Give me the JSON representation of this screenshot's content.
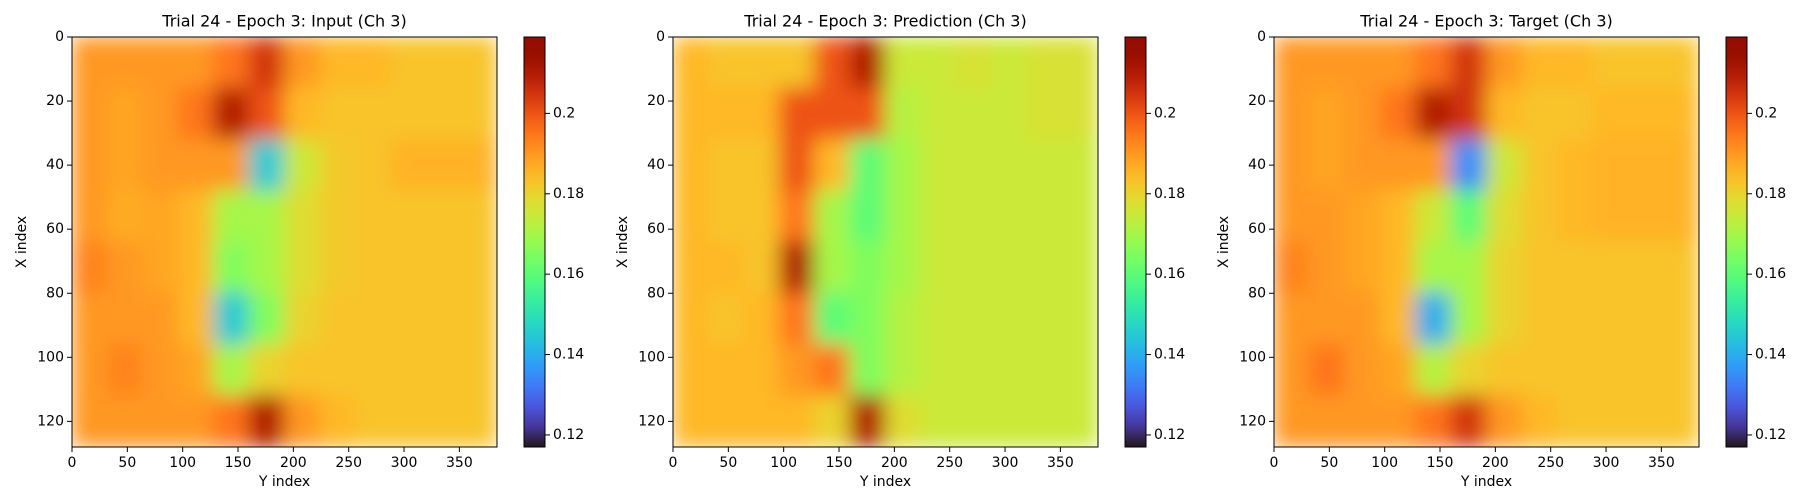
{
  "chart_data": [
    {
      "type": "heatmap",
      "title": "Trial 24 - Epoch 3: Input (Ch 3)",
      "xlabel": "Y index",
      "ylabel": "X index",
      "xlim": [
        0,
        384
      ],
      "ylim": [
        0,
        128
      ],
      "invert_y": true,
      "xticks": [
        0,
        50,
        100,
        150,
        200,
        250,
        300,
        350
      ],
      "yticks": [
        0,
        20,
        40,
        60,
        80,
        100,
        120
      ],
      "xbins": [
        0,
        32,
        64,
        96,
        128,
        160,
        192,
        224,
        256,
        288,
        320,
        352,
        384
      ],
      "ybins": [
        0,
        16,
        32,
        48,
        64,
        80,
        96,
        112,
        128
      ],
      "colormap": "turbo",
      "clim": [
        0.117,
        0.219
      ],
      "cticks": [
        0.12,
        0.14,
        0.16,
        0.18,
        0.2
      ],
      "z": [
        [
          0.19,
          0.19,
          0.19,
          0.19,
          0.195,
          0.205,
          0.19,
          0.185,
          0.185,
          0.183,
          0.183,
          0.183
        ],
        [
          0.19,
          0.188,
          0.19,
          0.195,
          0.21,
          0.2,
          0.185,
          0.183,
          0.183,
          0.183,
          0.183,
          0.183
        ],
        [
          0.19,
          0.188,
          0.19,
          0.19,
          0.19,
          0.145,
          0.175,
          0.182,
          0.183,
          0.186,
          0.186,
          0.186
        ],
        [
          0.19,
          0.187,
          0.188,
          0.185,
          0.17,
          0.17,
          0.178,
          0.182,
          0.183,
          0.183,
          0.183,
          0.183
        ],
        [
          0.193,
          0.19,
          0.188,
          0.185,
          0.165,
          0.17,
          0.178,
          0.182,
          0.183,
          0.183,
          0.183,
          0.183
        ],
        [
          0.19,
          0.19,
          0.19,
          0.185,
          0.145,
          0.165,
          0.18,
          0.183,
          0.183,
          0.183,
          0.183,
          0.183
        ],
        [
          0.19,
          0.193,
          0.19,
          0.188,
          0.17,
          0.18,
          0.183,
          0.183,
          0.183,
          0.183,
          0.183,
          0.183
        ],
        [
          0.19,
          0.19,
          0.19,
          0.19,
          0.195,
          0.21,
          0.19,
          0.185,
          0.183,
          0.183,
          0.183,
          0.183
        ]
      ]
    },
    {
      "type": "heatmap",
      "title": "Trial 24 - Epoch 3: Prediction (Ch 3)",
      "xlabel": "Y index",
      "ylabel": "X index",
      "xlim": [
        0,
        384
      ],
      "ylim": [
        0,
        128
      ],
      "invert_y": true,
      "xticks": [
        0,
        50,
        100,
        150,
        200,
        250,
        300,
        350
      ],
      "yticks": [
        0,
        20,
        40,
        60,
        80,
        100,
        120
      ],
      "xbins": [
        0,
        32,
        64,
        96,
        128,
        160,
        192,
        224,
        256,
        288,
        320,
        352,
        384
      ],
      "ybins": [
        0,
        16,
        32,
        48,
        64,
        80,
        96,
        112,
        128
      ],
      "colormap": "turbo",
      "clim": [
        0.117,
        0.219
      ],
      "cticks": [
        0.12,
        0.14,
        0.16,
        0.18,
        0.2
      ],
      "z": [
        [
          0.185,
          0.183,
          0.183,
          0.183,
          0.2,
          0.21,
          0.175,
          0.175,
          0.177,
          0.175,
          0.177,
          0.177
        ],
        [
          0.185,
          0.185,
          0.185,
          0.2,
          0.2,
          0.2,
          0.172,
          0.175,
          0.175,
          0.175,
          0.177,
          0.177
        ],
        [
          0.185,
          0.183,
          0.183,
          0.2,
          0.185,
          0.16,
          0.17,
          0.175,
          0.175,
          0.175,
          0.175,
          0.175
        ],
        [
          0.185,
          0.183,
          0.183,
          0.195,
          0.17,
          0.16,
          0.17,
          0.175,
          0.175,
          0.175,
          0.175,
          0.175
        ],
        [
          0.185,
          0.185,
          0.183,
          0.21,
          0.17,
          0.165,
          0.17,
          0.175,
          0.175,
          0.175,
          0.175,
          0.175
        ],
        [
          0.185,
          0.183,
          0.185,
          0.195,
          0.16,
          0.165,
          0.172,
          0.175,
          0.175,
          0.175,
          0.175,
          0.175
        ],
        [
          0.185,
          0.185,
          0.185,
          0.19,
          0.195,
          0.165,
          0.172,
          0.175,
          0.175,
          0.175,
          0.175,
          0.175
        ],
        [
          0.185,
          0.185,
          0.185,
          0.185,
          0.18,
          0.21,
          0.178,
          0.175,
          0.175,
          0.175,
          0.175,
          0.175
        ]
      ]
    },
    {
      "type": "heatmap",
      "title": "Trial 24 - Epoch 3: Target (Ch 3)",
      "xlabel": "Y index",
      "ylabel": "X index",
      "xlim": [
        0,
        384
      ],
      "ylim": [
        0,
        128
      ],
      "invert_y": true,
      "xticks": [
        0,
        50,
        100,
        150,
        200,
        250,
        300,
        350
      ],
      "yticks": [
        0,
        20,
        40,
        60,
        80,
        100,
        120
      ],
      "xbins": [
        0,
        32,
        64,
        96,
        128,
        160,
        192,
        224,
        256,
        288,
        320,
        352,
        384
      ],
      "ybins": [
        0,
        16,
        32,
        48,
        64,
        80,
        96,
        112,
        128
      ],
      "colormap": "turbo",
      "clim": [
        0.117,
        0.219
      ],
      "cticks": [
        0.12,
        0.14,
        0.16,
        0.18,
        0.2
      ],
      "z": [
        [
          0.19,
          0.19,
          0.19,
          0.19,
          0.195,
          0.205,
          0.19,
          0.185,
          0.185,
          0.183,
          0.183,
          0.183
        ],
        [
          0.19,
          0.188,
          0.19,
          0.195,
          0.21,
          0.205,
          0.185,
          0.183,
          0.183,
          0.185,
          0.185,
          0.185
        ],
        [
          0.19,
          0.188,
          0.19,
          0.19,
          0.19,
          0.135,
          0.175,
          0.183,
          0.185,
          0.186,
          0.186,
          0.186
        ],
        [
          0.19,
          0.19,
          0.188,
          0.185,
          0.175,
          0.16,
          0.178,
          0.183,
          0.185,
          0.186,
          0.186,
          0.186
        ],
        [
          0.193,
          0.19,
          0.188,
          0.185,
          0.17,
          0.17,
          0.18,
          0.183,
          0.183,
          0.183,
          0.183,
          0.183
        ],
        [
          0.19,
          0.19,
          0.19,
          0.185,
          0.14,
          0.17,
          0.18,
          0.183,
          0.183,
          0.183,
          0.183,
          0.183
        ],
        [
          0.19,
          0.195,
          0.19,
          0.188,
          0.172,
          0.18,
          0.183,
          0.183,
          0.183,
          0.183,
          0.183,
          0.183
        ],
        [
          0.19,
          0.19,
          0.19,
          0.19,
          0.195,
          0.205,
          0.19,
          0.185,
          0.183,
          0.183,
          0.183,
          0.183
        ]
      ]
    }
  ]
}
